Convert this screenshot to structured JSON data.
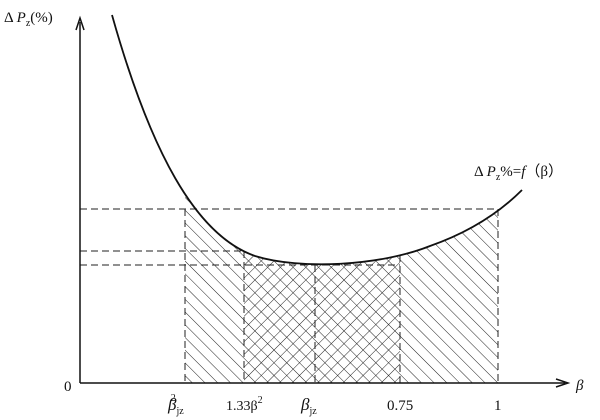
{
  "axes": {
    "y_label": {
      "delta": "Δ",
      "var": "P",
      "sub": "z",
      "unit": "(%)"
    },
    "x_label": "β",
    "origin": "0"
  },
  "curve_label": {
    "delta": "Δ",
    "var": "P",
    "sub": "z",
    "rest": "%=",
    "func": "f",
    "arg": "（β）"
  },
  "x_labels": [
    {
      "base": "β",
      "sub": "jz",
      "sup": "2"
    },
    {
      "base": "1.33β",
      "sup": "2"
    },
    {
      "base": "β",
      "sub": "jz"
    },
    {
      "base": "0.75"
    },
    {
      "base": "1"
    }
  ]
}
